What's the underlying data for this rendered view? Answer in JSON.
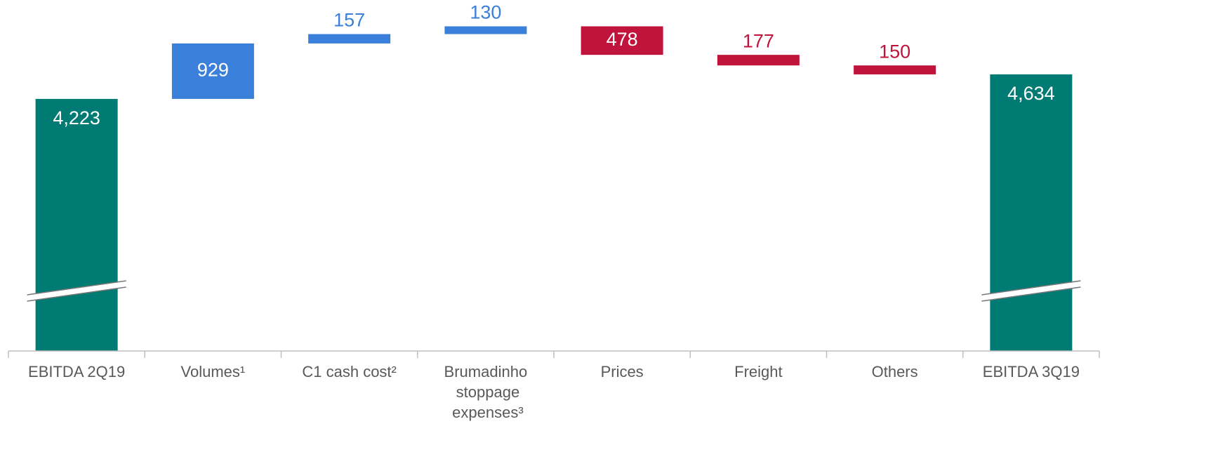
{
  "chart_data": {
    "type": "waterfall",
    "categories": [
      "EBITDA 2Q19",
      "Volumes¹",
      "C1 cash cost²",
      "Brumadinho stoppage expenses³",
      "Prices",
      "Freight",
      "Others",
      "EBITDA 3Q19"
    ],
    "values": [
      4223,
      929,
      157,
      130,
      -478,
      -177,
      -150,
      4634
    ],
    "value_labels": [
      "4,223",
      "929",
      "157",
      "130",
      "478",
      "177",
      "150",
      "4,634"
    ],
    "bar_kinds": [
      "total",
      "delta",
      "delta",
      "delta",
      "delta",
      "delta",
      "delta",
      "total"
    ],
    "colors": {
      "total": "#007b73",
      "increase": "#3a7fd9",
      "decrease": "#c0143c"
    },
    "ylim": [
      0,
      5880
    ],
    "axis_break": true
  }
}
